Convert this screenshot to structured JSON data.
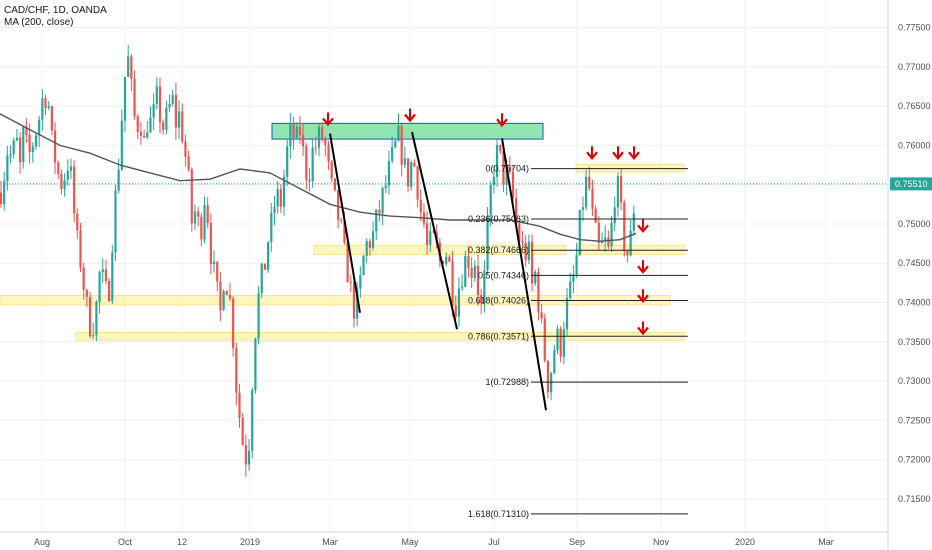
{
  "header": {
    "symbol": "CAD/CHF, 1D, OANDA",
    "indicator": "MA (200, close)"
  },
  "colors": {
    "up": "#26a69a",
    "down": "#ef5350",
    "ma": "#555555",
    "zone_green": "#7ee0a0",
    "zone_yellow": "#fff3a8",
    "arrow": "#e00000",
    "price_tag": "#26a69a"
  },
  "chart_data": {
    "type": "candlestick",
    "title": "CAD/CHF, 1D, OANDA",
    "ylim": [
      0.7108,
      0.7785
    ],
    "y_ticks": [
      "0.77500",
      "0.77000",
      "0.76500",
      "0.76000",
      "0.75500",
      "0.75000",
      "0.74500",
      "0.74000",
      "0.73500",
      "0.73000",
      "0.72500",
      "0.72000",
      "0.71500"
    ],
    "x_ticks": [
      "Aug",
      "Oct",
      "12",
      "2019",
      "Mar",
      "May",
      "Jul",
      "Sep",
      "Nov",
      "2020",
      "Mar"
    ],
    "last_price": "0.75510",
    "price_path": [
      [
        0,
        0.754
      ],
      [
        4,
        0.7565
      ],
      [
        8,
        0.76
      ],
      [
        12,
        0.758
      ],
      [
        16,
        0.761
      ],
      [
        20,
        0.757
      ],
      [
        24,
        0.762
      ],
      [
        28,
        0.758
      ],
      [
        32,
        0.76
      ],
      [
        36,
        0.762
      ],
      [
        40,
        0.764
      ],
      [
        44,
        0.767
      ],
      [
        48,
        0.766
      ],
      [
        52,
        0.76
      ],
      [
        56,
        0.758
      ],
      [
        60,
        0.755
      ],
      [
        64,
        0.756
      ],
      [
        68,
        0.758
      ],
      [
        72,
        0.755
      ],
      [
        76,
        0.748
      ],
      [
        80,
        0.746
      ],
      [
        84,
        0.742
      ],
      [
        88,
        0.738
      ],
      [
        92,
        0.737
      ],
      [
        96,
        0.739
      ],
      [
        100,
        0.744
      ],
      [
        104,
        0.742
      ],
      [
        108,
        0.74
      ],
      [
        112,
        0.748
      ],
      [
        116,
        0.754
      ],
      [
        120,
        0.76
      ],
      [
        124,
        0.768
      ],
      [
        128,
        0.771
      ],
      [
        132,
        0.766
      ],
      [
        136,
        0.762
      ],
      [
        140,
        0.764
      ],
      [
        144,
        0.76
      ],
      [
        148,
        0.764
      ],
      [
        152,
        0.762
      ],
      [
        156,
        0.766
      ],
      [
        160,
        0.764
      ],
      [
        164,
        0.762
      ],
      [
        168,
        0.764
      ],
      [
        172,
        0.766
      ],
      [
        176,
        0.763
      ],
      [
        180,
        0.764
      ],
      [
        184,
        0.76
      ],
      [
        188,
        0.756
      ],
      [
        192,
        0.75
      ],
      [
        196,
        0.752
      ],
      [
        200,
        0.748
      ],
      [
        204,
        0.754
      ],
      [
        208,
        0.751
      ],
      [
        212,
        0.745
      ],
      [
        216,
        0.742
      ],
      [
        220,
        0.738
      ],
      [
        224,
        0.744
      ],
      [
        228,
        0.742
      ],
      [
        232,
        0.738
      ],
      [
        236,
        0.73
      ],
      [
        240,
        0.725
      ],
      [
        244,
        0.721
      ],
      [
        248,
        0.72
      ],
      [
        252,
        0.73
      ],
      [
        256,
        0.738
      ],
      [
        260,
        0.742
      ],
      [
        264,
        0.744
      ],
      [
        268,
        0.748
      ],
      [
        272,
        0.75
      ],
      [
        276,
        0.754
      ],
      [
        280,
        0.752
      ],
      [
        284,
        0.756
      ],
      [
        288,
        0.76
      ],
      [
        292,
        0.762
      ],
      [
        296,
        0.76
      ],
      [
        300,
        0.762
      ],
      [
        304,
        0.758
      ],
      [
        308,
        0.756
      ],
      [
        312,
        0.759
      ],
      [
        316,
        0.76
      ],
      [
        320,
        0.761
      ],
      [
        324,
        0.761
      ],
      [
        328,
        0.757
      ],
      [
        332,
        0.754
      ],
      [
        336,
        0.752
      ],
      [
        340,
        0.75
      ],
      [
        344,
        0.746
      ],
      [
        348,
        0.744
      ],
      [
        352,
        0.74
      ],
      [
        356,
        0.739
      ],
      [
        360,
        0.742
      ],
      [
        364,
        0.746
      ],
      [
        368,
        0.748
      ],
      [
        372,
        0.748
      ],
      [
        376,
        0.75
      ],
      [
        380,
        0.752
      ],
      [
        384,
        0.754
      ],
      [
        388,
        0.756
      ],
      [
        392,
        0.758
      ],
      [
        396,
        0.76
      ],
      [
        400,
        0.761
      ],
      [
        404,
        0.757
      ],
      [
        408,
        0.756
      ],
      [
        412,
        0.758
      ],
      [
        416,
        0.757
      ],
      [
        420,
        0.752
      ],
      [
        424,
        0.75
      ],
      [
        428,
        0.746
      ],
      [
        432,
        0.748
      ],
      [
        436,
        0.747
      ],
      [
        440,
        0.745
      ],
      [
        444,
        0.747
      ],
      [
        448,
        0.746
      ],
      [
        452,
        0.742
      ],
      [
        456,
        0.74
      ],
      [
        460,
        0.743
      ],
      [
        464,
        0.745
      ],
      [
        468,
        0.746
      ],
      [
        472,
        0.744
      ],
      [
        476,
        0.746
      ],
      [
        480,
        0.738
      ],
      [
        484,
        0.742
      ],
      [
        488,
        0.75
      ],
      [
        492,
        0.756
      ],
      [
        496,
        0.759
      ],
      [
        500,
        0.758
      ],
      [
        504,
        0.756
      ],
      [
        508,
        0.756
      ],
      [
        512,
        0.754
      ],
      [
        516,
        0.75
      ],
      [
        520,
        0.748
      ],
      [
        524,
        0.746
      ],
      [
        528,
        0.747
      ],
      [
        532,
        0.742
      ],
      [
        536,
        0.744
      ],
      [
        540,
        0.738
      ],
      [
        544,
        0.734
      ],
      [
        548,
        0.73
      ],
      [
        552,
        0.732
      ],
      [
        556,
        0.736
      ],
      [
        560,
        0.734
      ],
      [
        564,
        0.738
      ],
      [
        568,
        0.74
      ],
      [
        572,
        0.742
      ],
      [
        576,
        0.745
      ],
      [
        580,
        0.75
      ],
      [
        584,
        0.754
      ],
      [
        588,
        0.756
      ],
      [
        592,
        0.751
      ],
      [
        596,
        0.748
      ],
      [
        600,
        0.746
      ],
      [
        604,
        0.748
      ],
      [
        608,
        0.746
      ],
      [
        612,
        0.75
      ],
      [
        616,
        0.756
      ],
      [
        620,
        0.752
      ],
      [
        624,
        0.748
      ],
      [
        628,
        0.746
      ],
      [
        632,
        0.749
      ],
      [
        636,
        0.756
      ]
    ],
    "ma_path": [
      [
        0,
        0.764
      ],
      [
        30,
        0.762
      ],
      [
        60,
        0.76
      ],
      [
        90,
        0.759
      ],
      [
        120,
        0.7575
      ],
      [
        150,
        0.7565
      ],
      [
        180,
        0.7555
      ],
      [
        210,
        0.7557
      ],
      [
        240,
        0.757
      ],
      [
        270,
        0.7565
      ],
      [
        300,
        0.7545
      ],
      [
        330,
        0.7525
      ],
      [
        360,
        0.7515
      ],
      [
        390,
        0.751
      ],
      [
        420,
        0.7508
      ],
      [
        450,
        0.7505
      ],
      [
        480,
        0.7505
      ],
      [
        510,
        0.7505
      ],
      [
        540,
        0.7497
      ],
      [
        560,
        0.7487
      ],
      [
        580,
        0.748
      ],
      [
        600,
        0.7478
      ],
      [
        620,
        0.748
      ],
      [
        636,
        0.7488
      ]
    ],
    "fib_levels": [
      {
        "label": "0(0.75704)",
        "value": 0.75704
      },
      {
        "label": "0.236(0.75063)",
        "value": 0.75063
      },
      {
        "label": "0.382(0.74666)",
        "value": 0.74666
      },
      {
        "label": "0.5(0.74346)",
        "value": 0.74346
      },
      {
        "label": "0.618(0.74026)",
        "value": 0.74026
      },
      {
        "label": "0.786(0.73571)",
        "value": 0.73571
      },
      {
        "label": "1(0.72988)",
        "value": 0.72988
      },
      {
        "label": "1.618(0.71310)",
        "value": 0.7131
      }
    ],
    "fib_x_range": [
      531,
      688
    ],
    "zones": [
      {
        "kind": "green",
        "y0": 0.7608,
        "y1": 0.7628,
        "x0": 272,
        "x1": 543
      },
      {
        "kind": "yellow",
        "y0": 0.7566,
        "y1": 0.7576,
        "x0": 576,
        "x1": 684
      },
      {
        "kind": "yellow",
        "y0": 0.7461,
        "y1": 0.7473,
        "x0": 314,
        "x1": 566
      },
      {
        "kind": "yellow",
        "y0": 0.7461,
        "y1": 0.7473,
        "x0": 578,
        "x1": 684
      },
      {
        "kind": "yellow",
        "y0": 0.7397,
        "y1": 0.7409,
        "x0": 0,
        "x1": 670
      },
      {
        "kind": "yellow",
        "y0": 0.7352,
        "y1": 0.7362,
        "x0": 76,
        "x1": 684
      }
    ],
    "trend_lines": [
      [
        [
          330,
          0.7615
        ],
        [
          360,
          0.7387
        ]
      ],
      [
        [
          412,
          0.7617
        ],
        [
          457,
          0.7366
        ]
      ],
      [
        [
          502,
          0.7609
        ],
        [
          546,
          0.7263
        ]
      ]
    ],
    "arrows": [
      [
        328,
        0.7633
      ],
      [
        410,
        0.7638
      ],
      [
        502,
        0.7632
      ],
      [
        592,
        0.759
      ],
      [
        618,
        0.759
      ],
      [
        634,
        0.759
      ],
      [
        643,
        0.7497
      ],
      [
        643,
        0.7445
      ],
      [
        643,
        0.7408
      ],
      [
        643,
        0.7367
      ]
    ]
  }
}
